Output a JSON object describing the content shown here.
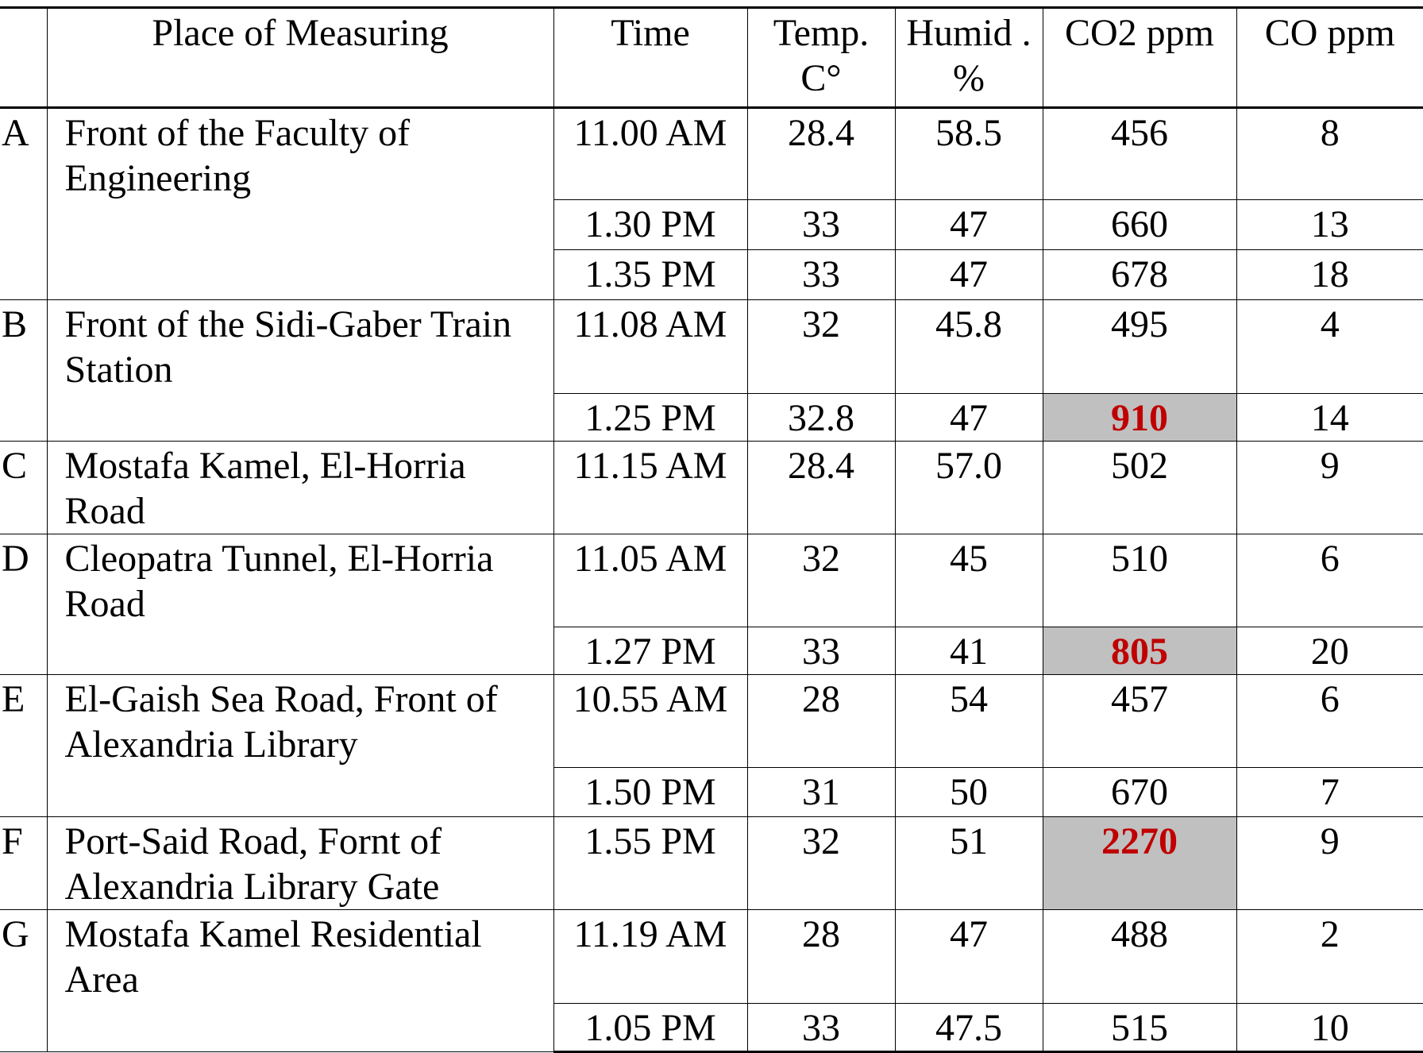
{
  "headers": [
    "",
    "Place of Measuring",
    "Time",
    "Temp. C°",
    "Humid . %",
    "CO2 ppm",
    "CO ppm"
  ],
  "highlight": {
    "background": "#c0c0c0",
    "text": "#c00000"
  },
  "sites": [
    {
      "id": "A",
      "place": "Front of the Faculty of Engineering",
      "readings": [
        {
          "time": "11.00 AM",
          "temp": "28.4",
          "humid": "58.5",
          "co2": "456",
          "co": "8"
        },
        {
          "time": "1.30  PM",
          "temp": "33",
          "humid": "47",
          "co2": "660",
          "co": "13"
        },
        {
          "time": "1.35 PM",
          "temp": "33",
          "humid": "47",
          "co2": "678",
          "co": "18"
        }
      ]
    },
    {
      "id": "B",
      "place": "Front of the Sidi-Gaber Train Station",
      "readings": [
        {
          "time": "11.08 AM",
          "temp": "32",
          "humid": "45.8",
          "co2": "495",
          "co": "4"
        },
        {
          "time": "1.25 PM",
          "temp": "32.8",
          "humid": "47",
          "co2": "910",
          "co": "14",
          "highlighted": true
        }
      ]
    },
    {
      "id": "C",
      "place": "Mostafa Kamel, El-Horria Road",
      "readings": [
        {
          "time": "11.15 AM",
          "temp": "28.4",
          "humid": "57.0",
          "co2": "502",
          "co": "9"
        }
      ]
    },
    {
      "id": "D",
      "place": "Cleopatra Tunnel, El-Horria Road",
      "readings": [
        {
          "time": "11.05 AM",
          "temp": "32",
          "humid": "45",
          "co2": "510",
          "co": "6"
        },
        {
          "time": "1.27 PM",
          "temp": "33",
          "humid": "41",
          "co2": "805",
          "co": "20",
          "highlighted": true
        }
      ]
    },
    {
      "id": "E",
      "place": "El-Gaish Sea Road, Front of Alexandria Library",
      "readings": [
        {
          "time": "10.55 AM",
          "temp": "28",
          "humid": "54",
          "co2": "457",
          "co": "6"
        },
        {
          "time": "1.50 PM",
          "temp": "31",
          "humid": "50",
          "co2": "670",
          "co": "7"
        }
      ]
    },
    {
      "id": "F",
      "place": "Port-Said Road, Fornt of Alexandria Library Gate",
      "readings": [
        {
          "time": "1.55 PM",
          "temp": "32",
          "humid": "51",
          "co2": "2270",
          "co": "9",
          "highlighted": true
        }
      ]
    },
    {
      "id": "G",
      "place": "Mostafa Kamel Residential Area",
      "readings": [
        {
          "time": "11.19 AM",
          "temp": "28",
          "humid": "47",
          "co2": "488",
          "co": "2"
        },
        {
          "time": "1.05 PM",
          "temp": "33",
          "humid": "47.5",
          "co2": "515",
          "co": "10"
        }
      ]
    }
  ]
}
